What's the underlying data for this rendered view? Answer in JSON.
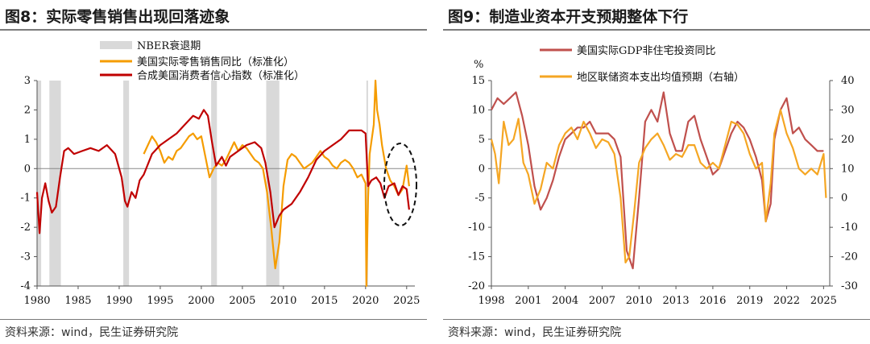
{
  "chart_data": [
    {
      "figure_title": "图8：实际零售销售出现回落迹象",
      "source": "资料来源：wind，民生证券研究院",
      "type": "line",
      "x_ticks": [
        "1980",
        "1985",
        "1990",
        "1995",
        "2000",
        "2005",
        "2010",
        "2015",
        "2020",
        "2025"
      ],
      "xlim": [
        1980,
        2026
      ],
      "ylim": [
        -4,
        3
      ],
      "y_ticks": [
        "3",
        "2",
        "1",
        "0",
        "-1",
        "-2",
        "-3",
        "-4"
      ],
      "legend_placement": "top-center",
      "annotation": "dashed ellipse highlighting latest decline",
      "recession_bands": {
        "name": "NBER衰退期",
        "color": "#d9d9d9",
        "periods": [
          [
            1980.0,
            1980.5
          ],
          [
            1981.5,
            1982.9
          ],
          [
            1990.5,
            1991.2
          ],
          [
            2001.2,
            2001.9
          ],
          [
            2007.9,
            2009.5
          ],
          [
            2020.1,
            2020.3
          ]
        ]
      },
      "series": [
        {
          "name": "美国实际零售销售同比（标准化）",
          "color": "#f59c00",
          "x": [
            1993.0,
            1993.5,
            1994.0,
            1994.5,
            1995.0,
            1995.5,
            1996.0,
            1996.5,
            1997.0,
            1997.5,
            1998.0,
            1998.5,
            1999.0,
            1999.5,
            2000.0,
            2000.5,
            2001.0,
            2001.5,
            2002.0,
            2002.5,
            2003.0,
            2003.5,
            2004.0,
            2004.5,
            2005.0,
            2005.5,
            2006.0,
            2006.5,
            2007.0,
            2007.5,
            2008.0,
            2008.5,
            2009.0,
            2009.5,
            2010.0,
            2010.5,
            2011.0,
            2011.5,
            2012.0,
            2012.5,
            2013.0,
            2013.5,
            2014.0,
            2014.5,
            2015.0,
            2015.5,
            2016.0,
            2016.5,
            2017.0,
            2017.5,
            2018.0,
            2018.5,
            2019.0,
            2019.5,
            2020.0,
            2020.1,
            2020.3,
            2020.5,
            2021.0,
            2021.2,
            2021.4,
            2021.7,
            2022.0,
            2022.5,
            2023.0,
            2023.5,
            2024.0,
            2024.5,
            2025.0,
            2025.3
          ],
          "values": [
            0.5,
            0.8,
            1.1,
            0.9,
            0.6,
            0.2,
            0.4,
            0.3,
            0.6,
            0.7,
            0.9,
            1.1,
            1.2,
            1.0,
            1.1,
            0.4,
            -0.3,
            0.0,
            0.2,
            0.1,
            0.3,
            0.6,
            0.9,
            0.6,
            0.8,
            0.7,
            0.5,
            0.3,
            0.2,
            0.0,
            -0.8,
            -2.0,
            -3.4,
            -2.5,
            -0.6,
            0.3,
            0.5,
            0.4,
            0.2,
            0.0,
            0.1,
            0.2,
            0.4,
            0.6,
            0.4,
            0.3,
            0.1,
            0.0,
            0.2,
            0.3,
            0.2,
            0.0,
            -0.3,
            -0.2,
            -0.5,
            -4.0,
            -1.0,
            0.5,
            1.5,
            3.0,
            2.0,
            1.5,
            0.8,
            0.0,
            -0.4,
            -0.6,
            -0.9,
            -0.7,
            0.1,
            -0.6
          ]
        },
        {
          "name": "合成美国消费者信心指数（标准化）",
          "color": "#c00000",
          "x": [
            1980.0,
            1980.3,
            1980.6,
            1981.0,
            1981.4,
            1981.8,
            1982.3,
            1982.8,
            1983.3,
            1983.8,
            1984.5,
            1985.5,
            1986.5,
            1987.5,
            1988.5,
            1989.5,
            1990.3,
            1990.7,
            1991.0,
            1991.5,
            1992.0,
            1992.5,
            1993.0,
            1994.0,
            1995.0,
            1996.0,
            1997.0,
            1998.0,
            1999.0,
            1999.7,
            2000.3,
            2000.8,
            2001.3,
            2001.8,
            2002.5,
            2003.0,
            2003.5,
            2004.5,
            2005.5,
            2006.5,
            2007.3,
            2007.8,
            2008.4,
            2008.9,
            2009.5,
            2010.0,
            2011.0,
            2012.0,
            2013.0,
            2014.0,
            2015.0,
            2016.0,
            2017.0,
            2018.0,
            2018.7,
            2019.5,
            2020.0,
            2020.3,
            2020.7,
            2021.3,
            2021.8,
            2022.3,
            2022.8,
            2023.5,
            2024.0,
            2024.5,
            2025.0,
            2025.3
          ],
          "values": [
            -0.8,
            -2.2,
            -1.0,
            -0.5,
            -1.1,
            -1.5,
            -1.3,
            -0.3,
            0.6,
            0.7,
            0.5,
            0.6,
            0.7,
            0.6,
            0.8,
            0.5,
            -0.3,
            -1.1,
            -1.3,
            -0.8,
            -1.0,
            -0.4,
            -0.2,
            0.5,
            0.8,
            1.0,
            1.2,
            1.5,
            1.8,
            1.7,
            2.0,
            1.8,
            0.9,
            0.1,
            0.4,
            0.1,
            0.4,
            0.6,
            0.8,
            0.9,
            0.7,
            0.2,
            -0.8,
            -2.0,
            -1.6,
            -1.4,
            -1.2,
            -0.8,
            -0.3,
            0.3,
            0.6,
            0.8,
            1.0,
            1.3,
            1.3,
            1.3,
            1.2,
            -0.6,
            -0.4,
            -0.3,
            -0.5,
            -1.0,
            -0.6,
            -0.5,
            -0.9,
            -0.6,
            -0.7,
            -1.4
          ]
        }
      ]
    },
    {
      "figure_title": "图9：制造业资本开支预期整体下行",
      "source": "资料来源：wind，民生证券研究院",
      "type": "line",
      "x_ticks": [
        "1998",
        "2001",
        "2004",
        "2007",
        "2010",
        "2013",
        "2016",
        "2019",
        "2022",
        "2025"
      ],
      "xlim": [
        1998,
        2025.5
      ],
      "left_axis": {
        "label": "%",
        "ylim": [
          -20,
          15
        ],
        "ticks": [
          "15",
          "10",
          "5",
          "0",
          "-5",
          "-10",
          "-15",
          "-20"
        ]
      },
      "right_axis": {
        "ylim": [
          -30,
          40
        ],
        "ticks": [
          "40",
          "30",
          "20",
          "10",
          "0",
          "-10",
          "-20",
          "-30"
        ]
      },
      "legend_placement": "top-right",
      "series": [
        {
          "name": "美国实际GDP非住宅投资同比",
          "color": "#c0504d",
          "axis": "left",
          "x": [
            1998.0,
            1998.5,
            1999.0,
            1999.5,
            2000.0,
            2000.5,
            2001.0,
            2001.5,
            2002.0,
            2002.5,
            2003.0,
            2003.5,
            2004.0,
            2004.5,
            2005.0,
            2005.5,
            2006.0,
            2006.5,
            2007.0,
            2007.5,
            2008.0,
            2008.5,
            2009.0,
            2009.5,
            2010.0,
            2010.5,
            2011.0,
            2011.5,
            2012.0,
            2012.5,
            2013.0,
            2013.5,
            2014.0,
            2014.5,
            2015.0,
            2015.5,
            2016.0,
            2016.5,
            2017.0,
            2017.5,
            2018.0,
            2018.5,
            2019.0,
            2019.5,
            2020.0,
            2020.3,
            2020.7,
            2021.0,
            2021.5,
            2022.0,
            2022.5,
            2023.0,
            2023.5,
            2024.0,
            2024.5,
            2025.0
          ],
          "values": [
            10,
            12,
            11,
            12,
            13,
            9,
            4,
            -3,
            -7,
            -5,
            -2,
            2,
            5,
            6,
            7,
            7,
            8,
            6,
            6,
            6,
            5,
            2,
            -14,
            -17,
            -5,
            8,
            10,
            8,
            13,
            6,
            3,
            3,
            8,
            9,
            5,
            2,
            -1,
            0,
            3,
            6,
            8,
            7,
            5,
            2,
            -2,
            -9,
            -6,
            5,
            10,
            12,
            6,
            7,
            5,
            4,
            3,
            3
          ]
        },
        {
          "name": "地区联储资本支出均值预期（右轴）",
          "color": "#f5a623",
          "axis": "right",
          "x": [
            1998.0,
            1998.3,
            1998.6,
            1999.0,
            1999.4,
            1999.8,
            2000.2,
            2000.6,
            2001.0,
            2001.5,
            2002.0,
            2002.5,
            2003.0,
            2003.5,
            2004.0,
            2004.5,
            2005.0,
            2005.5,
            2006.0,
            2006.5,
            2007.0,
            2007.5,
            2008.0,
            2008.5,
            2008.9,
            2009.2,
            2009.6,
            2010.0,
            2010.5,
            2011.0,
            2011.5,
            2012.0,
            2012.5,
            2013.0,
            2013.5,
            2014.0,
            2014.5,
            2015.0,
            2015.5,
            2016.0,
            2016.5,
            2017.0,
            2017.5,
            2018.0,
            2018.5,
            2019.0,
            2019.5,
            2020.0,
            2020.3,
            2020.7,
            2021.0,
            2021.5,
            2022.0,
            2022.5,
            2023.0,
            2023.5,
            2024.0,
            2024.5,
            2025.0,
            2025.2
          ],
          "values": [
            20,
            15,
            5,
            26,
            18,
            20,
            27,
            12,
            8,
            -2,
            3,
            12,
            10,
            18,
            22,
            24,
            20,
            26,
            22,
            17,
            20,
            19,
            15,
            0,
            -22,
            -20,
            -5,
            12,
            17,
            20,
            22,
            18,
            13,
            15,
            14,
            18,
            18,
            12,
            10,
            12,
            10,
            18,
            26,
            25,
            22,
            15,
            10,
            12,
            -8,
            5,
            22,
            30,
            22,
            17,
            10,
            8,
            10,
            8,
            15,
            0
          ]
        }
      ]
    }
  ]
}
